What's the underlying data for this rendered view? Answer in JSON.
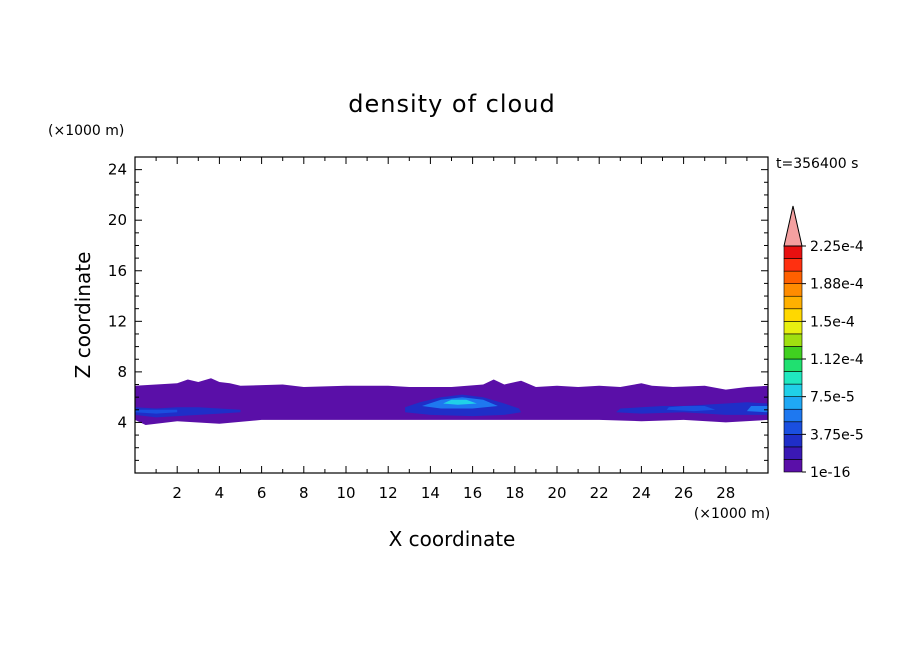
{
  "chart_data": {
    "type": "heatmap",
    "title": "density of cloud",
    "xlabel": "X coordinate",
    "ylabel": "Z coordinate",
    "x_unit": "(×1000 m)",
    "y_unit": "(×1000 m)",
    "time_label": "t=356400 s",
    "xlim": [
      0,
      30
    ],
    "ylim": [
      0,
      25
    ],
    "x_ticks": [
      2,
      4,
      6,
      8,
      10,
      12,
      14,
      16,
      18,
      20,
      22,
      24,
      26,
      28
    ],
    "y_ticks": [
      4,
      8,
      12,
      16,
      20,
      24
    ],
    "colorbar": {
      "labels": [
        "1e-16",
        "3.75e-5",
        "7.5e-5",
        "1.12e-4",
        "1.5e-4",
        "1.88e-4",
        "2.25e-4"
      ],
      "colors": [
        "#5a0fa8",
        "#3a18b5",
        "#1f2ec8",
        "#1a4fe0",
        "#1e78f0",
        "#1fa8f5",
        "#20d0e8",
        "#20e8c0",
        "#20e070",
        "#40d020",
        "#a0e010",
        "#e8f010",
        "#ffd800",
        "#ffb000",
        "#ff8c00",
        "#ff6000",
        "#ff3010",
        "#e81010"
      ],
      "extend_color": "#f4a0a0"
    },
    "regions": [
      {
        "name": "cloud-layer",
        "level": "1e-16",
        "color": "#5a0fa8",
        "points": [
          [
            0,
            4.2
          ],
          [
            0.5,
            3.8
          ],
          [
            2,
            4.1
          ],
          [
            4,
            3.9
          ],
          [
            6,
            4.2
          ],
          [
            8,
            4.2
          ],
          [
            10,
            4.2
          ],
          [
            12,
            4.2
          ],
          [
            14,
            4.2
          ],
          [
            16,
            4.2
          ],
          [
            18,
            4.2
          ],
          [
            20,
            4.2
          ],
          [
            22,
            4.2
          ],
          [
            24,
            4.1
          ],
          [
            26,
            4.2
          ],
          [
            28,
            4.0
          ],
          [
            30,
            4.2
          ],
          [
            30,
            6.9
          ],
          [
            29,
            6.8
          ],
          [
            28,
            6.6
          ],
          [
            27,
            6.9
          ],
          [
            25.5,
            6.8
          ],
          [
            24.5,
            6.9
          ],
          [
            24,
            7.1
          ],
          [
            23,
            6.8
          ],
          [
            22,
            6.9
          ],
          [
            21,
            6.8
          ],
          [
            20,
            6.9
          ],
          [
            19,
            6.8
          ],
          [
            18.3,
            7.3
          ],
          [
            17.5,
            7.0
          ],
          [
            17,
            7.4
          ],
          [
            16.5,
            7.0
          ],
          [
            15,
            6.8
          ],
          [
            13,
            6.8
          ],
          [
            12,
            6.9
          ],
          [
            10,
            6.9
          ],
          [
            8,
            6.8
          ],
          [
            7,
            7.0
          ],
          [
            5,
            6.9
          ],
          [
            4.5,
            7.1
          ],
          [
            4,
            7.2
          ],
          [
            3.6,
            7.5
          ],
          [
            3,
            7.2
          ],
          [
            2.5,
            7.4
          ],
          [
            2,
            7.1
          ],
          [
            1,
            7.0
          ],
          [
            0,
            6.9
          ]
        ]
      },
      {
        "name": "left-core",
        "level": "3.75e-5",
        "color": "#1f2ec8",
        "points": [
          [
            0,
            4.6
          ],
          [
            1,
            4.4
          ],
          [
            2,
            4.5
          ],
          [
            3,
            4.6
          ],
          [
            4,
            4.7
          ],
          [
            5,
            4.8
          ],
          [
            5,
            5.0
          ],
          [
            4,
            5.1
          ],
          [
            3,
            5.2
          ],
          [
            2,
            5.2
          ],
          [
            1,
            5.1
          ],
          [
            0,
            5.2
          ]
        ]
      },
      {
        "name": "left-core-inner",
        "level": "7.5e-5",
        "color": "#1a4fe0",
        "points": [
          [
            0,
            4.8
          ],
          [
            1,
            4.7
          ],
          [
            2,
            4.8
          ],
          [
            2,
            5.0
          ],
          [
            1,
            5.0
          ],
          [
            0,
            5.0
          ]
        ]
      },
      {
        "name": "center-core",
        "level": "3.75e-5",
        "color": "#1f2ec8",
        "points": [
          [
            12.8,
            4.8
          ],
          [
            14,
            4.6
          ],
          [
            16,
            4.5
          ],
          [
            17.5,
            4.6
          ],
          [
            18.3,
            4.8
          ],
          [
            18.2,
            5.1
          ],
          [
            17.5,
            5.5
          ],
          [
            16.5,
            6.0
          ],
          [
            15.5,
            6.2
          ],
          [
            14.5,
            6.0
          ],
          [
            13.5,
            5.6
          ],
          [
            12.8,
            5.2
          ]
        ]
      },
      {
        "name": "center-core-mid",
        "level": "7.5e-5",
        "color": "#1e78f0",
        "points": [
          [
            13.6,
            5.3
          ],
          [
            14.5,
            5.1
          ],
          [
            16,
            5.1
          ],
          [
            17.2,
            5.3
          ],
          [
            16.5,
            5.8
          ],
          [
            15.5,
            6.0
          ],
          [
            14.5,
            5.8
          ]
        ]
      },
      {
        "name": "center-core-peak",
        "level": "1.12e-4",
        "color": "#20d0e8",
        "points": [
          [
            14.6,
            5.5
          ],
          [
            15.3,
            5.4
          ],
          [
            16.2,
            5.5
          ],
          [
            15.7,
            5.8
          ],
          [
            15.0,
            5.8
          ]
        ]
      },
      {
        "name": "right-core",
        "level": "3.75e-5",
        "color": "#1f2ec8",
        "points": [
          [
            22.8,
            4.8
          ],
          [
            24,
            4.7
          ],
          [
            26,
            4.8
          ],
          [
            28,
            4.6
          ],
          [
            30,
            4.6
          ],
          [
            30,
            5.5
          ],
          [
            29,
            5.6
          ],
          [
            28,
            5.5
          ],
          [
            27,
            5.4
          ],
          [
            26,
            5.3
          ],
          [
            25,
            5.3
          ],
          [
            24,
            5.2
          ],
          [
            23,
            5.1
          ]
        ]
      },
      {
        "name": "right-core-inner",
        "level": "7.5e-5",
        "color": "#1a4fe0",
        "points": [
          [
            25.2,
            5.0
          ],
          [
            26.5,
            4.9
          ],
          [
            27.5,
            5.0
          ],
          [
            27,
            5.3
          ],
          [
            26,
            5.3
          ],
          [
            25.3,
            5.2
          ]
        ]
      },
      {
        "name": "right-edge-inner",
        "level": "7.5e-5",
        "color": "#1e78f0",
        "points": [
          [
            29,
            4.9
          ],
          [
            30,
            4.8
          ],
          [
            30,
            5.3
          ],
          [
            29.2,
            5.3
          ]
        ]
      }
    ]
  }
}
